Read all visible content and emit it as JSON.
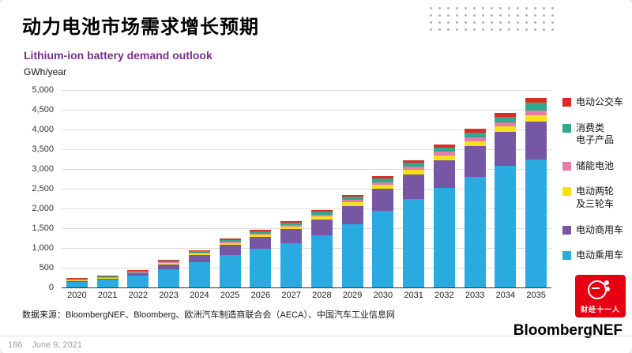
{
  "page": {
    "title": "动力电池市场需求增长预期",
    "source": "数据来源：BloombergNEF、Bloomberg、欧洲汽车制造商联合会（AECA）、中国汽车工业信息网",
    "badge": "财经十一人",
    "brand": "BloombergNEF",
    "footer_page_number": "186",
    "footer_date": "June 9, 2021"
  },
  "colors": {
    "subtitle": "#7B2E8F",
    "badge_red": "#E60012"
  },
  "chart_data": {
    "type": "bar",
    "stacked": true,
    "title": "Lithium-ion battery demand outlook",
    "ylabel": "GWh/year",
    "ylim": [
      0,
      5000
    ],
    "ytick_step": 500,
    "grid": true,
    "legend_position": "right",
    "categories": [
      "2020",
      "2021",
      "2022",
      "2023",
      "2024",
      "2025",
      "2026",
      "2027",
      "2028",
      "2029",
      "2030",
      "2031",
      "2032",
      "2033",
      "2034",
      "2035"
    ],
    "series": [
      {
        "name": "电动乘用车",
        "color": "#29ABE2",
        "values": [
          150,
          200,
          300,
          470,
          640,
          830,
          980,
          1130,
          1320,
          1600,
          1950,
          2250,
          2530,
          2800,
          3080,
          3250
        ]
      },
      {
        "name": "电动商用车",
        "color": "#7657A4",
        "values": [
          25,
          35,
          55,
          120,
          180,
          250,
          300,
          350,
          400,
          470,
          550,
          620,
          700,
          780,
          860,
          950
        ]
      },
      {
        "name": "电动两轮及三轮车",
        "color": "#F5E216",
        "values": [
          15,
          15,
          20,
          30,
          40,
          50,
          60,
          70,
          80,
          90,
          100,
          110,
          120,
          130,
          140,
          160
        ]
      },
      {
        "name": "储能电池",
        "color": "#E77BA9",
        "values": [
          10,
          10,
          10,
          15,
          20,
          25,
          30,
          35,
          45,
          55,
          65,
          75,
          85,
          95,
          105,
          120
        ]
      },
      {
        "name": "消费类电子产品",
        "color": "#2FA98C",
        "values": [
          35,
          35,
          35,
          40,
          45,
          50,
          55,
          60,
          70,
          80,
          90,
          100,
          110,
          120,
          130,
          200
        ]
      },
      {
        "name": "电动公交车",
        "color": "#DD2C23",
        "values": [
          15,
          15,
          15,
          20,
          25,
          30,
          35,
          40,
          45,
          55,
          65,
          75,
          85,
          95,
          105,
          130
        ]
      }
    ],
    "legend": [
      {
        "label": "电动公交车",
        "color": "#DD2C23"
      },
      {
        "label": "消费类\n电子产品",
        "color": "#2FA98C"
      },
      {
        "label": "储能电池",
        "color": "#E77BA9"
      },
      {
        "label": "电动两轮\n及三轮车",
        "color": "#F5E216"
      },
      {
        "label": "电动商用车",
        "color": "#7657A4"
      },
      {
        "label": "电动乘用车",
        "color": "#29ABE2"
      }
    ]
  }
}
